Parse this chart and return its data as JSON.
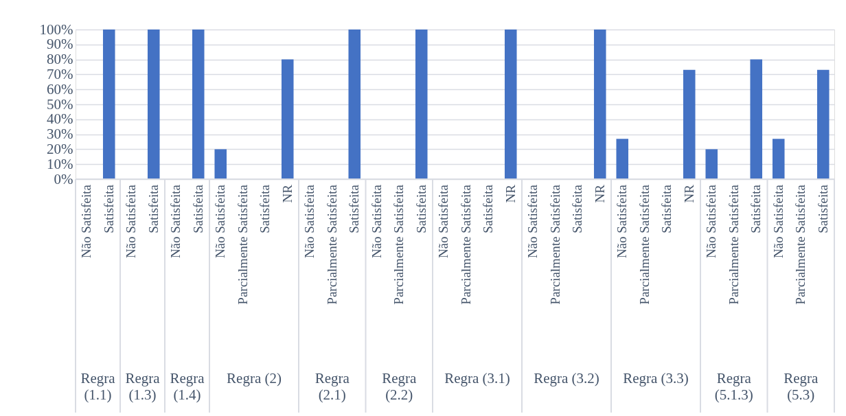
{
  "chart_data": {
    "type": "bar",
    "categories": [
      "Não Satisfeita",
      "Satisfeita",
      "Não Satisfeita",
      "Satisfeita",
      "Não Satisfeita",
      "Satisfeita",
      "Não Satisfeita",
      "Parcialmente Satisfeita",
      "Satisfeita",
      "NR",
      "Não Satisfeita",
      "Parcialmente Satisfeita",
      "Satisfeita",
      "Não Satisfeita",
      "Parcialmente Satisfeita",
      "Satisfeita",
      "Não Satisfeita",
      "Parcialmente Satisfeita",
      "Satisfeita",
      "NR",
      "Não Satisfeita",
      "Parcialmente Satisfeita",
      "Satisfeita",
      "NR",
      "Não Satisfeita",
      "Parcialmente Satisfeita",
      "Satisfeita",
      "NR",
      "Não Satisfeita",
      "Parcialmente Satisfeita",
      "Satisfeita",
      "Não Satisfeita",
      "Parcialmente Satisfeita",
      "Satisfeita"
    ],
    "values": [
      0,
      100,
      0,
      100,
      0,
      100,
      20,
      0,
      0,
      80,
      0,
      0,
      100,
      0,
      0,
      100,
      0,
      0,
      0,
      100,
      0,
      0,
      0,
      100,
      27,
      0,
      0,
      73,
      20,
      0,
      80,
      27,
      0,
      73
    ],
    "color": "#4472c4",
    "ylim": [
      0,
      100
    ],
    "yticks": [
      {
        "value": 0,
        "label": "0%"
      },
      {
        "value": 10,
        "label": "10%"
      },
      {
        "value": 20,
        "label": "20%"
      },
      {
        "value": 30,
        "label": "30%"
      },
      {
        "value": 40,
        "label": "40%"
      },
      {
        "value": 50,
        "label": "50%"
      },
      {
        "value": 60,
        "label": "60%"
      },
      {
        "value": 70,
        "label": "70%"
      },
      {
        "value": 80,
        "label": "80%"
      },
      {
        "value": 90,
        "label": "90%"
      },
      {
        "value": 100,
        "label": "100%"
      }
    ],
    "grid": "y",
    "annotations": [
      "Regra (1.1)",
      "Regra (1.3)",
      "Regra (1.4)",
      "Regra (2)",
      "Regra (2.1)",
      "Regra (2.2)",
      "Regra (3.1)",
      "Regra (3.2)",
      "Regra (3.3)",
      "Regra (5.1.3)",
      "Regra (5.3)"
    ]
  }
}
